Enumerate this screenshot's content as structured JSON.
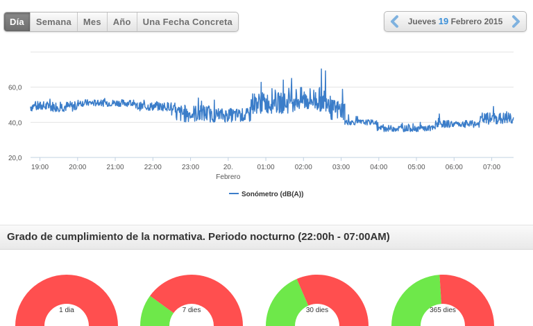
{
  "period_tabs": [
    {
      "label": "Día",
      "active": true
    },
    {
      "label": "Semana",
      "active": false
    },
    {
      "label": "Mes",
      "active": false
    },
    {
      "label": "Año",
      "active": false
    },
    {
      "label": "Una Fecha Concreta",
      "active": false
    }
  ],
  "date_nav": {
    "weekday": "Jueves",
    "day": "19",
    "month_year": "Febrero 2015",
    "prev_icon": "chevron-left-icon",
    "next_icon": "chevron-right-icon",
    "accent_color": "#3a8fd8"
  },
  "chart_data": {
    "type": "line",
    "title": "",
    "xlabel": "",
    "ylabel": "",
    "y_ticks": [
      "20,0",
      "40,0",
      "60,0"
    ],
    "ylim": [
      20,
      80
    ],
    "xlim": [
      18.75,
      31.58
    ],
    "x_ticks": [
      {
        "value": 19,
        "label": "19:00"
      },
      {
        "value": 20,
        "label": "20:00"
      },
      {
        "value": 21,
        "label": "21:00"
      },
      {
        "value": 22,
        "label": "22:00"
      },
      {
        "value": 23,
        "label": "23:00"
      },
      {
        "value": 24,
        "label": "20.",
        "sublabel": "Febrero"
      },
      {
        "value": 25,
        "label": "01:00"
      },
      {
        "value": 26,
        "label": "02:00"
      },
      {
        "value": 27,
        "label": "03:00"
      },
      {
        "value": 28,
        "label": "04:00"
      },
      {
        "value": 29,
        "label": "05:00"
      },
      {
        "value": 30,
        "label": "06:00"
      },
      {
        "value": 31,
        "label": "07:00"
      }
    ],
    "grid": true,
    "legend_position": "bottom-center",
    "series": [
      {
        "name": "Sonómetro (dB(A))",
        "color": "#3b7dc9",
        "segments": [
          {
            "from": 18.75,
            "to": 20.0,
            "base": 49,
            "amp": 3,
            "spike": 4
          },
          {
            "from": 20.0,
            "to": 21.5,
            "base": 51,
            "amp": 2,
            "spike": 3
          },
          {
            "from": 21.5,
            "to": 22.5,
            "base": 49,
            "amp": 2.5,
            "spike": 4
          },
          {
            "from": 22.5,
            "to": 23.5,
            "base": 45,
            "amp": 5,
            "spike": 10
          },
          {
            "from": 23.5,
            "to": 24.6,
            "base": 44,
            "amp": 4,
            "spike": 8
          },
          {
            "from": 24.6,
            "to": 25.6,
            "base": 51,
            "amp": 6,
            "spike": 14
          },
          {
            "from": 25.6,
            "to": 26.7,
            "base": 53,
            "amp": 7,
            "spike": 18
          },
          {
            "from": 26.7,
            "to": 27.1,
            "base": 47,
            "amp": 6,
            "spike": 18
          },
          {
            "from": 27.1,
            "to": 27.95,
            "base": 40,
            "amp": 1.5,
            "spike": 8
          },
          {
            "from": 27.95,
            "to": 29.5,
            "base": 36.5,
            "amp": 1.8,
            "spike": 3
          },
          {
            "from": 29.5,
            "to": 30.7,
            "base": 39,
            "amp": 2,
            "spike": 4
          },
          {
            "from": 30.7,
            "to": 31.58,
            "base": 42,
            "amp": 3.5,
            "spike": 7
          }
        ]
      }
    ]
  },
  "section": {
    "title": "Grado de cumplimiento de la normativa. Periodo nocturno (22:00h - 07:00AM)"
  },
  "gauges": [
    {
      "label": "1 dia",
      "compliant_fraction": 0.0
    },
    {
      "label": "7 dies",
      "compliant_fraction": 0.2
    },
    {
      "label": "30 dies",
      "compliant_fraction": 0.37
    },
    {
      "label": "365 dies",
      "compliant_fraction": 0.48
    }
  ],
  "colors": {
    "compliant": "#6ee84a",
    "non_compliant": "#ff4f4f",
    "series": "#3b7dc9"
  }
}
